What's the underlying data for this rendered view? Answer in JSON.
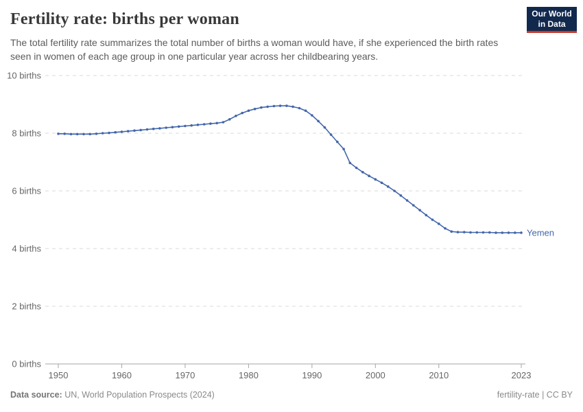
{
  "header": {
    "title": "Fertility rate: births per woman",
    "subtitle": "The total fertility rate summarizes the total number of births a woman would have, if she experienced the birth rates seen in women of each age group in one particular year across her childbearing years.",
    "logo": {
      "line1": "Our World",
      "line2": "in Data",
      "bg_color": "#12294e",
      "accent_color": "#c9392b"
    }
  },
  "chart_data": {
    "type": "line",
    "title": "Fertility rate: births per woman",
    "xlabel": "",
    "ylabel": "births",
    "xlim": [
      1950,
      2023
    ],
    "ylim": [
      0,
      10
    ],
    "grid": "horizontal-dashed",
    "x_ticks": [
      1950,
      1960,
      1970,
      1980,
      1990,
      2000,
      2010,
      2023
    ],
    "y_ticks": [
      0,
      2,
      4,
      6,
      8,
      10
    ],
    "y_tick_labels": [
      "0 births",
      "2 births",
      "4 births",
      "6 births",
      "8 births",
      "10 births"
    ],
    "legend_position": "end-of-line-label",
    "theme": {
      "line_color": "#4266ab",
      "grid_color": "#dadada",
      "axis_color": "#a5a5a5",
      "tick_label_color": "#666666"
    },
    "series": [
      {
        "name": "Yemen",
        "color": "#4266ab",
        "x": [
          1950,
          1951,
          1952,
          1953,
          1954,
          1955,
          1956,
          1957,
          1958,
          1959,
          1960,
          1961,
          1962,
          1963,
          1964,
          1965,
          1966,
          1967,
          1968,
          1969,
          1970,
          1971,
          1972,
          1973,
          1974,
          1975,
          1976,
          1977,
          1978,
          1979,
          1980,
          1981,
          1982,
          1983,
          1984,
          1985,
          1986,
          1987,
          1988,
          1989,
          1990,
          1991,
          1992,
          1993,
          1994,
          1995,
          1996,
          1997,
          1998,
          1999,
          2000,
          2001,
          2002,
          2003,
          2004,
          2005,
          2006,
          2007,
          2008,
          2009,
          2010,
          2011,
          2012,
          2013,
          2014,
          2015,
          2016,
          2017,
          2018,
          2019,
          2020,
          2021,
          2022,
          2023
        ],
        "values": [
          7.98,
          7.98,
          7.97,
          7.97,
          7.97,
          7.97,
          7.98,
          8.0,
          8.01,
          8.03,
          8.05,
          8.07,
          8.09,
          8.11,
          8.13,
          8.15,
          8.17,
          8.19,
          8.21,
          8.23,
          8.25,
          8.27,
          8.29,
          8.31,
          8.33,
          8.35,
          8.38,
          8.48,
          8.6,
          8.7,
          8.78,
          8.84,
          8.89,
          8.92,
          8.94,
          8.95,
          8.95,
          8.92,
          8.87,
          8.78,
          8.62,
          8.42,
          8.2,
          7.95,
          7.7,
          7.45,
          6.97,
          6.8,
          6.65,
          6.52,
          6.4,
          6.28,
          6.15,
          6.0,
          5.84,
          5.67,
          5.5,
          5.33,
          5.16,
          5.0,
          4.86,
          4.7,
          4.59,
          4.57,
          4.57,
          4.56,
          4.56,
          4.56,
          4.56,
          4.55,
          4.55,
          4.55,
          4.55,
          4.55
        ]
      }
    ]
  },
  "footer": {
    "datasource_label": "Data source:",
    "datasource_text": " UN, World Population Prospects (2024)",
    "note_right": "fertility-rate | CC BY"
  }
}
